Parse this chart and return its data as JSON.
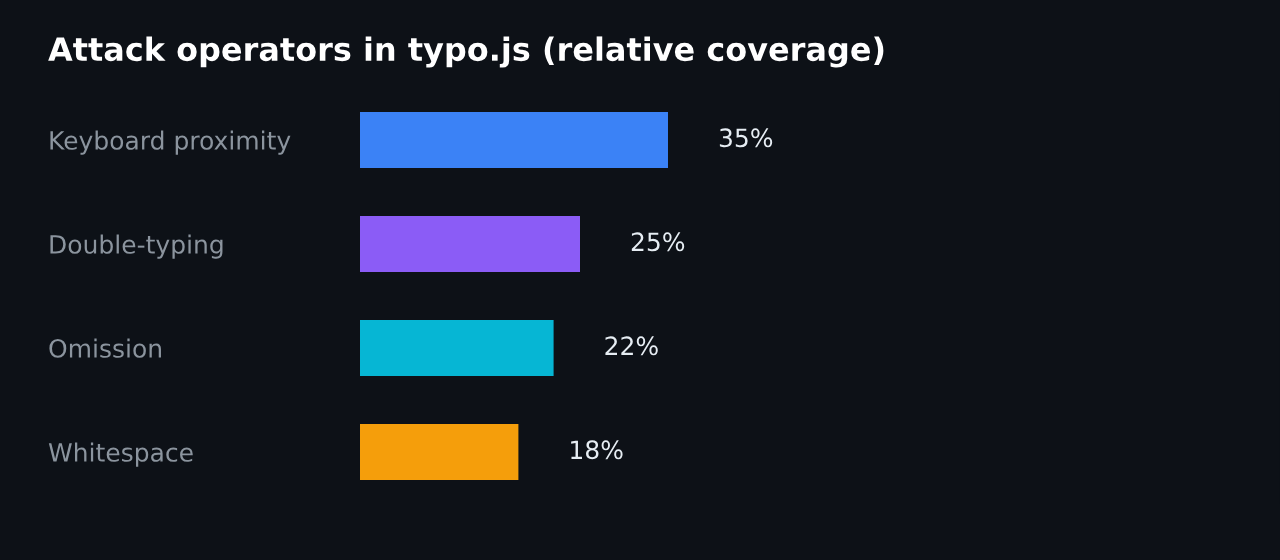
{
  "chart_data": {
    "type": "bar",
    "orientation": "horizontal",
    "title": "Attack operators in typo.js (relative coverage)",
    "categories": [
      "Keyboard proximity",
      "Double-typing",
      "Omission",
      "Whitespace"
    ],
    "values": [
      35,
      25,
      22,
      18
    ],
    "colors": [
      "#3b82f6",
      "#8b5cf6",
      "#06b6d4",
      "#f59e0b"
    ],
    "value_labels": [
      "35%",
      "25%",
      "22%",
      "18%"
    ],
    "grid": false,
    "legend": false
  }
}
